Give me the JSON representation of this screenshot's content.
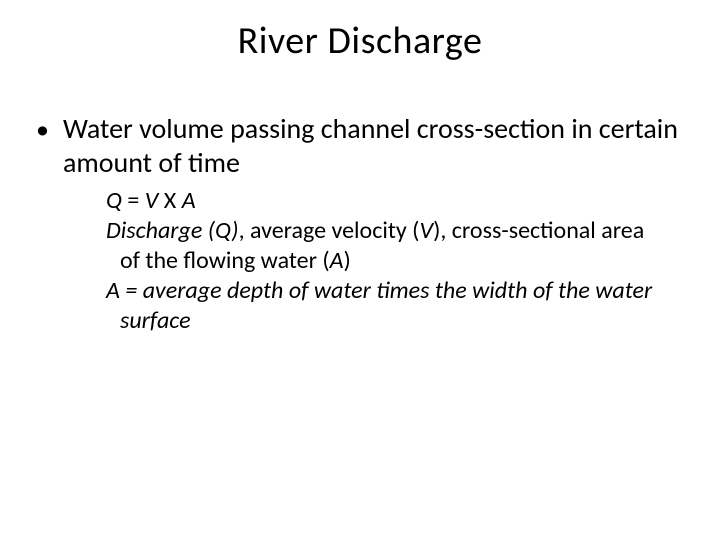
{
  "title": "River Discharge",
  "bullet": {
    "marker": "•",
    "text": "Water volume passing channel cross-section in certain amount of time"
  },
  "sub": {
    "formula_lhs": "Q",
    "formula_eq": " = ",
    "formula_v": "V",
    "formula_x": "  X  ",
    "formula_a": "A",
    "defs_pre": "Discharge (Q)",
    "defs_mid1": ", average velocity (",
    "defs_v": "V",
    "defs_mid2": "), cross-sectional area of the flowing water (",
    "defs_a": "A",
    "defs_end": ")",
    "area_lead": " A = average depth of water times the width of the water surface"
  },
  "style": {
    "background": "#ffffff",
    "text_color": "#000000",
    "title_fontsize": 38,
    "body_fontsize": 28,
    "sub_fontsize": 24,
    "font_family": "Calibri"
  }
}
